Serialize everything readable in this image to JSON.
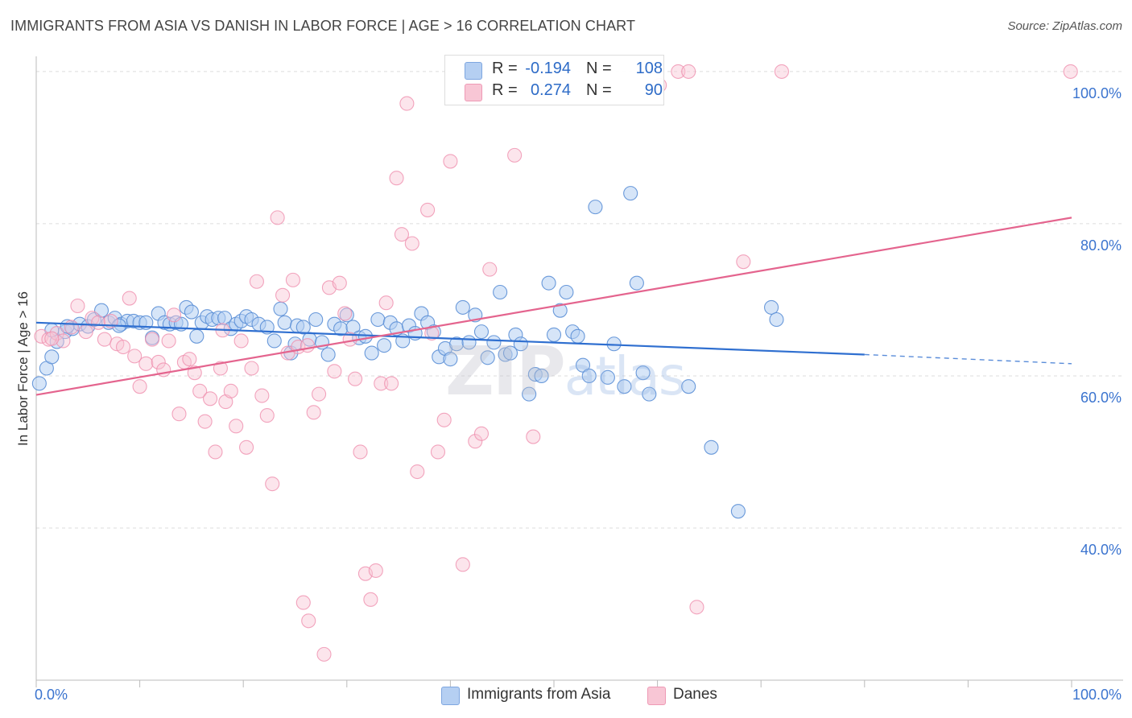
{
  "title": "IMMIGRANTS FROM ASIA VS DANISH IN LABOR FORCE | AGE > 16 CORRELATION CHART",
  "source": "Source: ZipAtlas.com",
  "watermark": {
    "zip": "ZIP",
    "atlas": "atlas"
  },
  "legend": {
    "rows": [
      {
        "r_label": "R = ",
        "r_value": "-0.194",
        "n_label": "N = ",
        "n_value": "108",
        "color": "#a9c7f2"
      },
      {
        "r_label": "R = ",
        "r_value": "0.274",
        "n_label": "N = ",
        "n_value": "90",
        "color": "#f7b8cc"
      }
    ]
  },
  "bottom_legend": [
    {
      "label": "Immigrants from Asia",
      "color": "#a9c7f2"
    },
    {
      "label": "Danes",
      "color": "#f7b8cc"
    }
  ],
  "chart_data": {
    "type": "scatter",
    "title": "IMMIGRANTS FROM ASIA VS DANISH IN LABOR FORCE | AGE > 16 CORRELATION CHART",
    "xlabel": "",
    "ylabel": "In Labor Force | Age > 16",
    "xlim": [
      0,
      100
    ],
    "ylim": [
      20,
      102
    ],
    "x_tick_labels": [
      "0.0%",
      "100.0%"
    ],
    "y_tick_labels": [
      {
        "value": 40,
        "label": "40.0%"
      },
      {
        "value": 60,
        "label": "60.0%"
      },
      {
        "value": 80,
        "label": "80.0%"
      },
      {
        "value": 100,
        "label": "100.0%"
      }
    ],
    "colors": {
      "asia": "#5b8fd6",
      "asia_fill": "#b5cff2",
      "danes": "#ef8fae",
      "danes_fill": "#f8c6d5",
      "asia_line": "#2f6fd0",
      "danes_line": "#e4648e"
    },
    "series": [
      {
        "name": "Immigrants from Asia",
        "R": -0.194,
        "N": 108,
        "trend": {
          "x0": 0,
          "y0": 67.0,
          "x1": 80,
          "y1": 62.8,
          "dash_to_x": 100,
          "dash_to_y": 61.6
        },
        "points": [
          [
            0.3,
            59.0
          ],
          [
            1.0,
            61.0
          ],
          [
            1.5,
            62.5
          ],
          [
            2.0,
            64.5
          ],
          [
            2.8,
            65.8
          ],
          [
            3.5,
            66.2
          ],
          [
            4.2,
            66.8
          ],
          [
            5.0,
            66.5
          ],
          [
            5.6,
            67.4
          ],
          [
            6.3,
            68.6
          ],
          [
            7.0,
            67.0
          ],
          [
            7.6,
            67.6
          ],
          [
            8.2,
            66.8
          ],
          [
            8.8,
            67.2
          ],
          [
            9.4,
            67.2
          ],
          [
            10.0,
            67.0
          ],
          [
            10.6,
            67.0
          ],
          [
            11.2,
            65.0
          ],
          [
            11.8,
            68.2
          ],
          [
            12.4,
            67.0
          ],
          [
            12.9,
            66.8
          ],
          [
            13.5,
            67.0
          ],
          [
            14.0,
            66.8
          ],
          [
            14.5,
            69.0
          ],
          [
            15.0,
            68.4
          ],
          [
            15.5,
            65.2
          ],
          [
            16.0,
            67.0
          ],
          [
            16.5,
            67.8
          ],
          [
            17.0,
            67.4
          ],
          [
            17.6,
            67.6
          ],
          [
            18.2,
            67.6
          ],
          [
            18.8,
            66.2
          ],
          [
            19.3,
            66.8
          ],
          [
            19.8,
            67.2
          ],
          [
            20.3,
            67.8
          ],
          [
            20.8,
            67.4
          ],
          [
            21.5,
            66.8
          ],
          [
            22.3,
            66.4
          ],
          [
            23.0,
            64.6
          ],
          [
            23.6,
            68.8
          ],
          [
            24.0,
            67.0
          ],
          [
            24.6,
            63.0
          ],
          [
            25.2,
            66.6
          ],
          [
            25.8,
            66.4
          ],
          [
            26.4,
            64.8
          ],
          [
            27.0,
            67.4
          ],
          [
            27.6,
            64.4
          ],
          [
            28.2,
            62.8
          ],
          [
            28.8,
            66.8
          ],
          [
            29.4,
            66.2
          ],
          [
            30.0,
            68.0
          ],
          [
            30.6,
            66.4
          ],
          [
            31.2,
            65.0
          ],
          [
            31.8,
            65.2
          ],
          [
            32.4,
            63.0
          ],
          [
            33.0,
            67.4
          ],
          [
            33.6,
            64.0
          ],
          [
            34.2,
            67.0
          ],
          [
            34.8,
            66.2
          ],
          [
            35.4,
            64.6
          ],
          [
            36.0,
            66.6
          ],
          [
            36.6,
            65.6
          ],
          [
            37.2,
            68.2
          ],
          [
            37.8,
            67.0
          ],
          [
            38.4,
            65.8
          ],
          [
            38.9,
            62.5
          ],
          [
            39.5,
            63.6
          ],
          [
            40.0,
            62.2
          ],
          [
            40.6,
            64.2
          ],
          [
            41.2,
            69.0
          ],
          [
            41.8,
            64.4
          ],
          [
            42.4,
            68.0
          ],
          [
            43.0,
            65.8
          ],
          [
            43.6,
            62.4
          ],
          [
            44.2,
            64.4
          ],
          [
            44.8,
            71.0
          ],
          [
            45.3,
            62.8
          ],
          [
            45.8,
            63.0
          ],
          [
            46.3,
            65.4
          ],
          [
            46.8,
            64.2
          ],
          [
            47.6,
            57.6
          ],
          [
            48.2,
            60.2
          ],
          [
            48.8,
            60.0
          ],
          [
            49.5,
            72.2
          ],
          [
            50.0,
            65.4
          ],
          [
            50.6,
            68.6
          ],
          [
            51.2,
            71.0
          ],
          [
            51.8,
            65.8
          ],
          [
            52.3,
            65.2
          ],
          [
            52.8,
            61.4
          ],
          [
            53.4,
            60.0
          ],
          [
            54.0,
            82.2
          ],
          [
            55.2,
            59.8
          ],
          [
            55.8,
            64.2
          ],
          [
            56.8,
            58.6
          ],
          [
            57.4,
            84.0
          ],
          [
            58.0,
            72.2
          ],
          [
            58.6,
            60.4
          ],
          [
            59.2,
            57.6
          ],
          [
            63.0,
            58.6
          ],
          [
            65.2,
            50.6
          ],
          [
            67.8,
            42.2
          ],
          [
            71.0,
            69.0
          ],
          [
            71.5,
            67.4
          ],
          [
            1.5,
            66.0
          ],
          [
            3.0,
            66.5
          ],
          [
            8.0,
            66.6
          ],
          [
            25.0,
            64.2
          ]
        ]
      },
      {
        "name": "Danes",
        "R": 0.274,
        "N": 90,
        "trend": {
          "x0": 0,
          "y0": 57.5,
          "x1": 100,
          "y1": 80.8
        },
        "points": [
          [
            0.5,
            65.2
          ],
          [
            1.2,
            64.8
          ],
          [
            2.0,
            65.6
          ],
          [
            2.6,
            64.6
          ],
          [
            3.4,
            66.4
          ],
          [
            4.0,
            69.2
          ],
          [
            4.8,
            65.8
          ],
          [
            5.4,
            67.6
          ],
          [
            6.0,
            67.0
          ],
          [
            6.6,
            64.8
          ],
          [
            7.2,
            67.2
          ],
          [
            7.8,
            64.2
          ],
          [
            8.4,
            63.8
          ],
          [
            9.0,
            70.2
          ],
          [
            9.5,
            62.6
          ],
          [
            10.0,
            58.6
          ],
          [
            10.6,
            61.6
          ],
          [
            11.2,
            64.8
          ],
          [
            11.8,
            61.8
          ],
          [
            12.3,
            60.8
          ],
          [
            12.8,
            64.6
          ],
          [
            13.3,
            68.0
          ],
          [
            13.8,
            55.0
          ],
          [
            14.3,
            61.8
          ],
          [
            14.8,
            62.2
          ],
          [
            15.3,
            60.4
          ],
          [
            15.8,
            58.0
          ],
          [
            16.3,
            54.0
          ],
          [
            16.8,
            57.0
          ],
          [
            17.3,
            50.0
          ],
          [
            17.8,
            61.0
          ],
          [
            18.3,
            56.6
          ],
          [
            18.8,
            58.0
          ],
          [
            19.3,
            53.4
          ],
          [
            19.8,
            64.6
          ],
          [
            20.3,
            50.6
          ],
          [
            20.8,
            61.0
          ],
          [
            21.3,
            72.4
          ],
          [
            21.8,
            57.4
          ],
          [
            22.3,
            54.8
          ],
          [
            22.8,
            45.8
          ],
          [
            23.3,
            80.8
          ],
          [
            23.8,
            70.6
          ],
          [
            24.3,
            63.0
          ],
          [
            24.8,
            72.6
          ],
          [
            25.3,
            63.8
          ],
          [
            25.8,
            30.2
          ],
          [
            26.3,
            27.8
          ],
          [
            26.8,
            55.2
          ],
          [
            27.3,
            57.6
          ],
          [
            27.8,
            23.4
          ],
          [
            28.3,
            71.6
          ],
          [
            28.8,
            60.6
          ],
          [
            29.3,
            72.2
          ],
          [
            29.8,
            68.2
          ],
          [
            30.3,
            64.8
          ],
          [
            30.8,
            59.6
          ],
          [
            31.3,
            50.0
          ],
          [
            31.8,
            34.0
          ],
          [
            32.3,
            30.6
          ],
          [
            32.8,
            34.4
          ],
          [
            33.3,
            59.0
          ],
          [
            33.8,
            69.6
          ],
          [
            34.3,
            59.0
          ],
          [
            34.8,
            86.0
          ],
          [
            35.3,
            78.6
          ],
          [
            35.8,
            95.8
          ],
          [
            36.3,
            77.4
          ],
          [
            36.8,
            47.4
          ],
          [
            37.8,
            81.8
          ],
          [
            38.2,
            65.6
          ],
          [
            38.8,
            50.0
          ],
          [
            39.4,
            54.2
          ],
          [
            40.0,
            88.2
          ],
          [
            41.2,
            35.2
          ],
          [
            42.4,
            51.4
          ],
          [
            43.0,
            52.4
          ],
          [
            43.8,
            74.0
          ],
          [
            46.2,
            89.0
          ],
          [
            48.0,
            52.0
          ],
          [
            60.2,
            98.2
          ],
          [
            62.0,
            100.0
          ],
          [
            63.0,
            100.0
          ],
          [
            63.8,
            29.6
          ],
          [
            68.3,
            75.0
          ],
          [
            72.0,
            100.0
          ],
          [
            99.9,
            100.0
          ],
          [
            1.5,
            64.9
          ],
          [
            26.2,
            64.0
          ],
          [
            18.0,
            66.0
          ]
        ]
      }
    ]
  }
}
